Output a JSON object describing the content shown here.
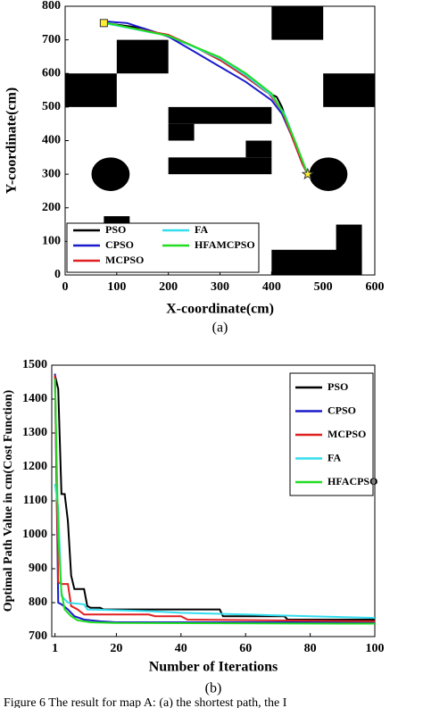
{
  "chart_data": [
    {
      "type": "line",
      "x_label": "X-coordinate(cm)",
      "y_label": "Y-coordinate(cm)",
      "caption": "(a)",
      "xlim": [
        0,
        600
      ],
      "ylim": [
        0,
        800
      ],
      "xticks": [
        0,
        100,
        200,
        300,
        400,
        500,
        600
      ],
      "yticks": [
        0,
        100,
        200,
        300,
        400,
        500,
        600,
        700,
        800
      ],
      "obstacles": [
        [
          400,
          700,
          100,
          100
        ],
        [
          100,
          600,
          100,
          100
        ],
        [
          0,
          500,
          100,
          100
        ],
        [
          500,
          500,
          100,
          100
        ],
        [
          200,
          450,
          200,
          50
        ],
        [
          200,
          400,
          50,
          50
        ],
        [
          350,
          350,
          50,
          50
        ],
        [
          200,
          300,
          200,
          50
        ],
        [
          75,
          100,
          50,
          75
        ],
        [
          400,
          0,
          175,
          75
        ],
        [
          525,
          0,
          50,
          150
        ]
      ],
      "round_obstacles": [
        [
          88,
          300,
          37,
          50
        ],
        [
          510,
          300,
          37,
          50
        ]
      ],
      "start": [
        75,
        750
      ],
      "goal": [
        470,
        300
      ],
      "series": [
        {
          "name": "PSO",
          "color": "#000000",
          "x": [
            75,
            150,
            200,
            250,
            300,
            350,
            390,
            410,
            420,
            440,
            460,
            470
          ],
          "values": [
            750,
            735,
            710,
            680,
            640,
            590,
            545,
            530,
            500,
            410,
            330,
            300
          ]
        },
        {
          "name": "CPSO",
          "color": "#1a1acc",
          "x": [
            75,
            120,
            200,
            250,
            300,
            350,
            400,
            420,
            440,
            460,
            470
          ],
          "values": [
            755,
            750,
            710,
            665,
            620,
            575,
            520,
            480,
            410,
            330,
            300
          ]
        },
        {
          "name": "MCPSO",
          "color": "#e02020",
          "x": [
            75,
            200,
            250,
            300,
            350,
            395,
            420,
            440,
            460,
            470
          ],
          "values": [
            750,
            715,
            680,
            640,
            590,
            540,
            490,
            410,
            330,
            300
          ]
        },
        {
          "name": "FA",
          "color": "#33ddee",
          "x": [
            75,
            200,
            300,
            350,
            400,
            425,
            445,
            470
          ],
          "values": [
            750,
            712,
            645,
            595,
            535,
            480,
            400,
            300
          ]
        },
        {
          "name": "HFAMCPSO",
          "color": "#22dd22",
          "x": [
            75,
            200,
            300,
            350,
            400,
            425,
            445,
            470
          ],
          "values": [
            752,
            712,
            648,
            600,
            540,
            475,
            400,
            300
          ]
        }
      ]
    },
    {
      "type": "line",
      "x_label": "Number of Iterations",
      "y_label": "Optimal Path Value in cm(Cost Function)",
      "caption": "(b)",
      "xlim": [
        0,
        100
      ],
      "ylim": [
        700,
        1500
      ],
      "xticks": [
        1,
        20,
        40,
        60,
        80,
        100
      ],
      "yticks": [
        700,
        800,
        900,
        1000,
        1100,
        1200,
        1300,
        1400,
        1500
      ],
      "series": [
        {
          "name": "PSO",
          "color": "#000000",
          "x": [
            1,
            2,
            3,
            4,
            5,
            6,
            7,
            10,
            11,
            12,
            15,
            16,
            52,
            53,
            72,
            73,
            100
          ],
          "values": [
            1470,
            1430,
            1120,
            1120,
            1040,
            880,
            840,
            840,
            790,
            785,
            785,
            780,
            780,
            760,
            760,
            750,
            750
          ]
        },
        {
          "name": "CPSO",
          "color": "#1a1acc",
          "x": [
            1,
            2,
            3,
            5,
            7,
            10,
            15,
            20,
            100
          ],
          "values": [
            1475,
            800,
            795,
            780,
            760,
            750,
            745,
            742,
            742
          ]
        },
        {
          "name": "MCPSO",
          "color": "#e02020",
          "x": [
            1,
            2,
            3,
            5,
            6,
            8,
            10,
            30,
            32,
            40,
            42,
            100
          ],
          "values": [
            1470,
            860,
            855,
            855,
            790,
            780,
            765,
            765,
            760,
            760,
            750,
            745
          ]
        },
        {
          "name": "FA",
          "color": "#33ddee",
          "x": [
            1,
            2,
            3,
            5,
            10,
            11,
            30,
            40,
            60,
            80,
            100
          ],
          "values": [
            1150,
            1080,
            820,
            800,
            795,
            780,
            775,
            770,
            765,
            760,
            755
          ]
        },
        {
          "name": "HFACPSO",
          "color": "#22dd22",
          "x": [
            1,
            2,
            3,
            4,
            6,
            8,
            12,
            20,
            100
          ],
          "values": [
            1460,
            1000,
            830,
            780,
            760,
            748,
            742,
            740,
            738
          ]
        }
      ]
    }
  ],
  "figure_caption": "Figure 6 The result for map A: (a) the shortest path, the I"
}
